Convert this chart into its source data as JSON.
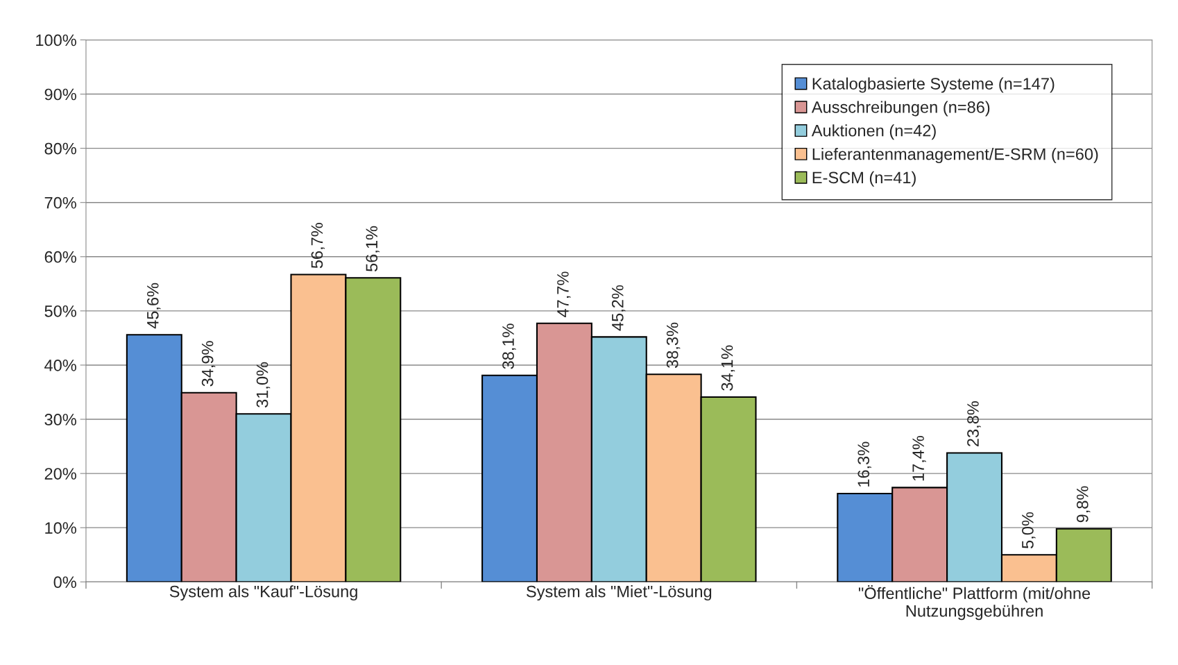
{
  "chart_data": {
    "type": "bar",
    "categories": [
      "System als \"Kauf\"-Lösung",
      "System als \"Miet\"-Lösung",
      "\"Öffentliche\" Plattform (mit/ohne\nNutzungsgebühren"
    ],
    "series": [
      {
        "name": "Katalogbasierte Systeme (n=147)",
        "color": "#558ed5",
        "values": [
          45.6,
          38.1,
          16.3
        ],
        "value_labels": [
          "45,6%",
          "38,1%",
          "16,3%"
        ]
      },
      {
        "name": "Ausschreibungen (n=86)",
        "color": "#d99694",
        "values": [
          34.9,
          47.7,
          17.4
        ],
        "value_labels": [
          "34,9%",
          "47,7%",
          "17,4%"
        ]
      },
      {
        "name": "Auktionen (n=42)",
        "color": "#93cddd",
        "values": [
          31.0,
          45.2,
          23.8
        ],
        "value_labels": [
          "31,0%",
          "45,2%",
          "23,8%"
        ]
      },
      {
        "name": "Lieferantenmanagement/E-SRM (n=60)",
        "color": "#fac090",
        "values": [
          56.7,
          38.3,
          5.0
        ],
        "value_labels": [
          "56,7%",
          "38,3%",
          "5,0%"
        ]
      },
      {
        "name": "E-SCM (n=41)",
        "color": "#9bbb59",
        "values": [
          56.1,
          34.1,
          9.8
        ],
        "value_labels": [
          "56,1%",
          "34,1%",
          "9,8%"
        ]
      }
    ],
    "ylim": [
      0,
      100
    ],
    "yticks": [
      {
        "value": 0,
        "label": "0%"
      },
      {
        "value": 10,
        "label": "10%"
      },
      {
        "value": 20,
        "label": "20%"
      },
      {
        "value": 30,
        "label": "30%"
      },
      {
        "value": 40,
        "label": "40%"
      },
      {
        "value": 50,
        "label": "50%"
      },
      {
        "value": 60,
        "label": "60%"
      },
      {
        "value": 70,
        "label": "70%"
      },
      {
        "value": 80,
        "label": "80%"
      },
      {
        "value": 90,
        "label": "90%"
      },
      {
        "value": 100,
        "label": "100%"
      }
    ],
    "grid": "y",
    "legend": "top right"
  }
}
